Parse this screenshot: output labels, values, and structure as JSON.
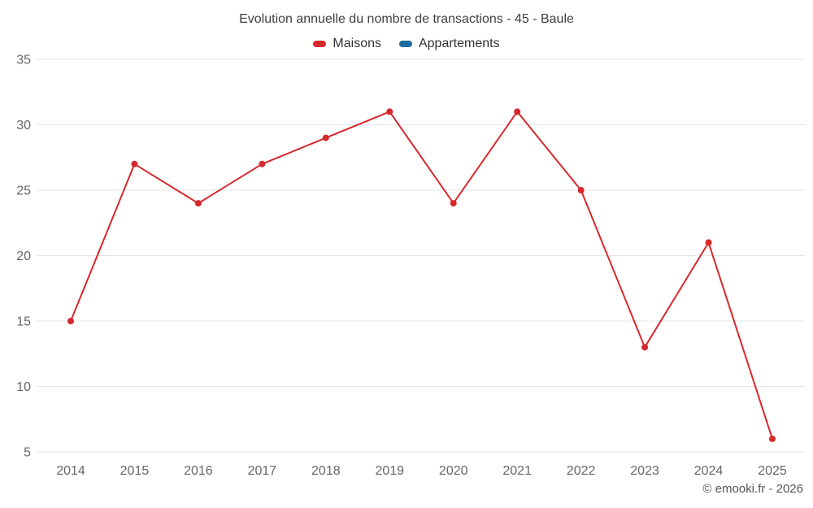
{
  "footer": {
    "credit": "© emooki.fr - 2026"
  },
  "chart_data": {
    "type": "line",
    "title": "Evolution annuelle du nombre de transactions - 45 - Baule",
    "categories": [
      "2014",
      "2015",
      "2016",
      "2017",
      "2018",
      "2019",
      "2020",
      "2021",
      "2022",
      "2023",
      "2024",
      "2025"
    ],
    "series": [
      {
        "name": "Maisons",
        "color": "#d7282c",
        "values": [
          15,
          27,
          24,
          27,
          29,
          31,
          24,
          31,
          25,
          13,
          21,
          6
        ]
      },
      {
        "name": "Appartements",
        "color": "#1b6d9d",
        "values": []
      }
    ],
    "xlabel": "",
    "ylabel": "",
    "ylim": [
      5,
      35
    ],
    "yticks": [
      5,
      10,
      15,
      20,
      25,
      30,
      35
    ],
    "grid": true,
    "grid_color": "#e6e6e6",
    "legend_position": "top",
    "text_color": "#666666"
  }
}
